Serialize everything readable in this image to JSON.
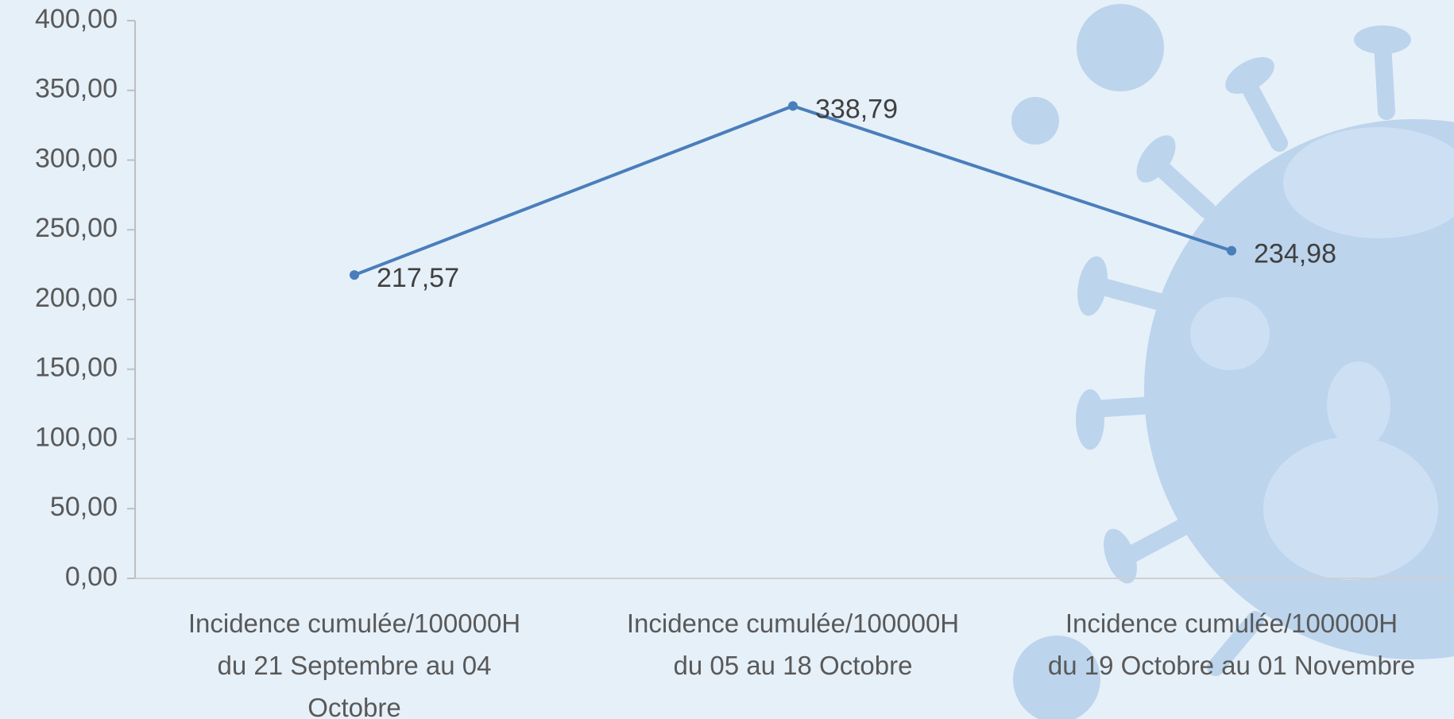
{
  "chart_data": {
    "type": "line",
    "categories": [
      "Incidence cumulée/100000H\ndu 21 Septembre  au 04\nOctobre",
      "Incidence cumulée/100000H\ndu 05 au 18 Octobre",
      "Incidence cumulée/100000H\ndu 19 Octobre au 01 Novembre"
    ],
    "values": [
      217.57,
      338.79,
      234.98
    ],
    "value_labels": [
      "217,57",
      "338,79",
      "234,98"
    ],
    "color": "#4a7ebb",
    "ylim": [
      0,
      400
    ],
    "yticks": [
      {
        "value": 0,
        "label": "0,00"
      },
      {
        "value": 50,
        "label": "50,00"
      },
      {
        "value": 100,
        "label": "100,00"
      },
      {
        "value": 150,
        "label": "150,00"
      },
      {
        "value": 200,
        "label": "200,00"
      },
      {
        "value": 250,
        "label": "250,00"
      },
      {
        "value": 300,
        "label": "300,00"
      },
      {
        "value": 350,
        "label": "350,00"
      },
      {
        "value": 400,
        "label": "400,00"
      }
    ],
    "grid": false
  }
}
